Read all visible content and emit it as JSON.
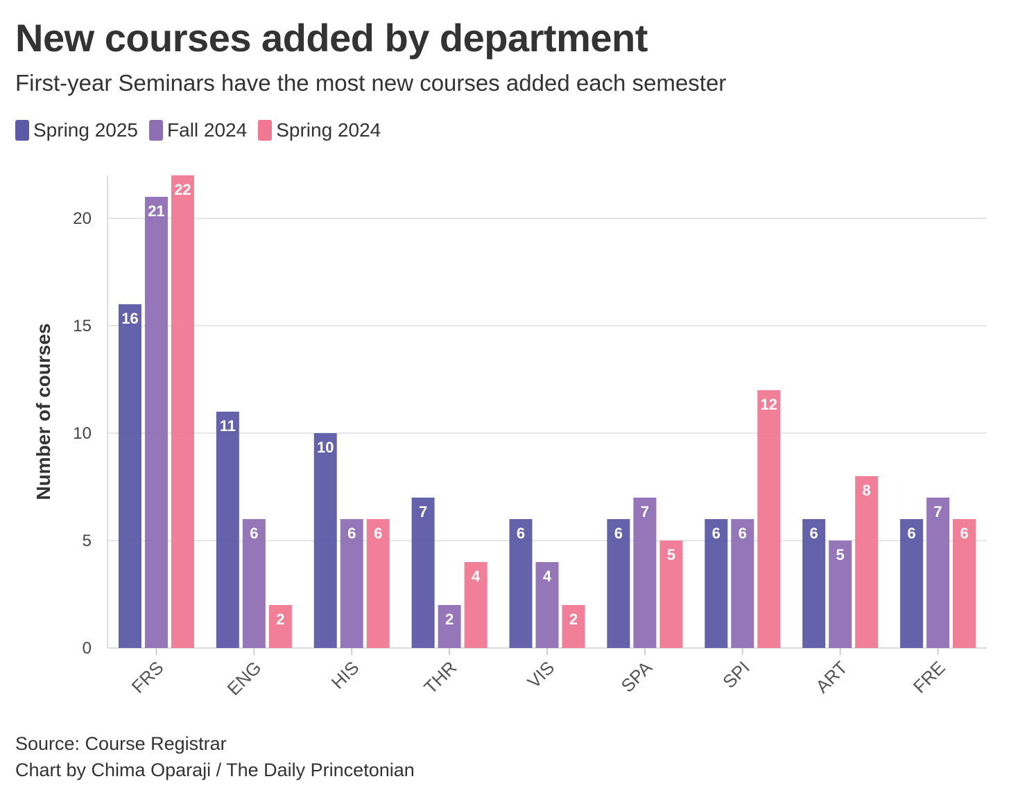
{
  "title": "New courses added by department",
  "subtitle": "First-year Seminars have the most new courses added each semester",
  "legend": [
    {
      "label": "Spring 2025",
      "color": "#5b5aa6"
    },
    {
      "label": "Fall 2024",
      "color": "#8f6fb4"
    },
    {
      "label": "Spring 2024",
      "color": "#f07892"
    }
  ],
  "footer": {
    "source": "Source: Course Registrar",
    "credit": "Chart by Chima Oparaji / The Daily Princetonian"
  },
  "chart_data": {
    "type": "bar",
    "title": "New courses added by department",
    "subtitle": "First-year Seminars have the most new courses added each semester",
    "xlabel": "",
    "ylabel": "Number of courses",
    "ylim": [
      0,
      22
    ],
    "yticks": [
      0,
      5,
      10,
      15,
      20
    ],
    "grid": true,
    "legend_position": "top-left",
    "categories": [
      "FRS",
      "ENG",
      "HIS",
      "THR",
      "VIS",
      "SPA",
      "SPI",
      "ART",
      "FRE"
    ],
    "series": [
      {
        "name": "Spring 2025",
        "color": "#5b5aa6",
        "values": [
          16,
          11,
          10,
          7,
          6,
          6,
          6,
          6,
          6
        ]
      },
      {
        "name": "Fall 2024",
        "color": "#8f6fb4",
        "values": [
          21,
          6,
          6,
          2,
          4,
          7,
          6,
          5,
          7
        ]
      },
      {
        "name": "Spring 2024",
        "color": "#f07892",
        "values": [
          22,
          2,
          6,
          4,
          2,
          5,
          12,
          8,
          6
        ]
      }
    ]
  }
}
